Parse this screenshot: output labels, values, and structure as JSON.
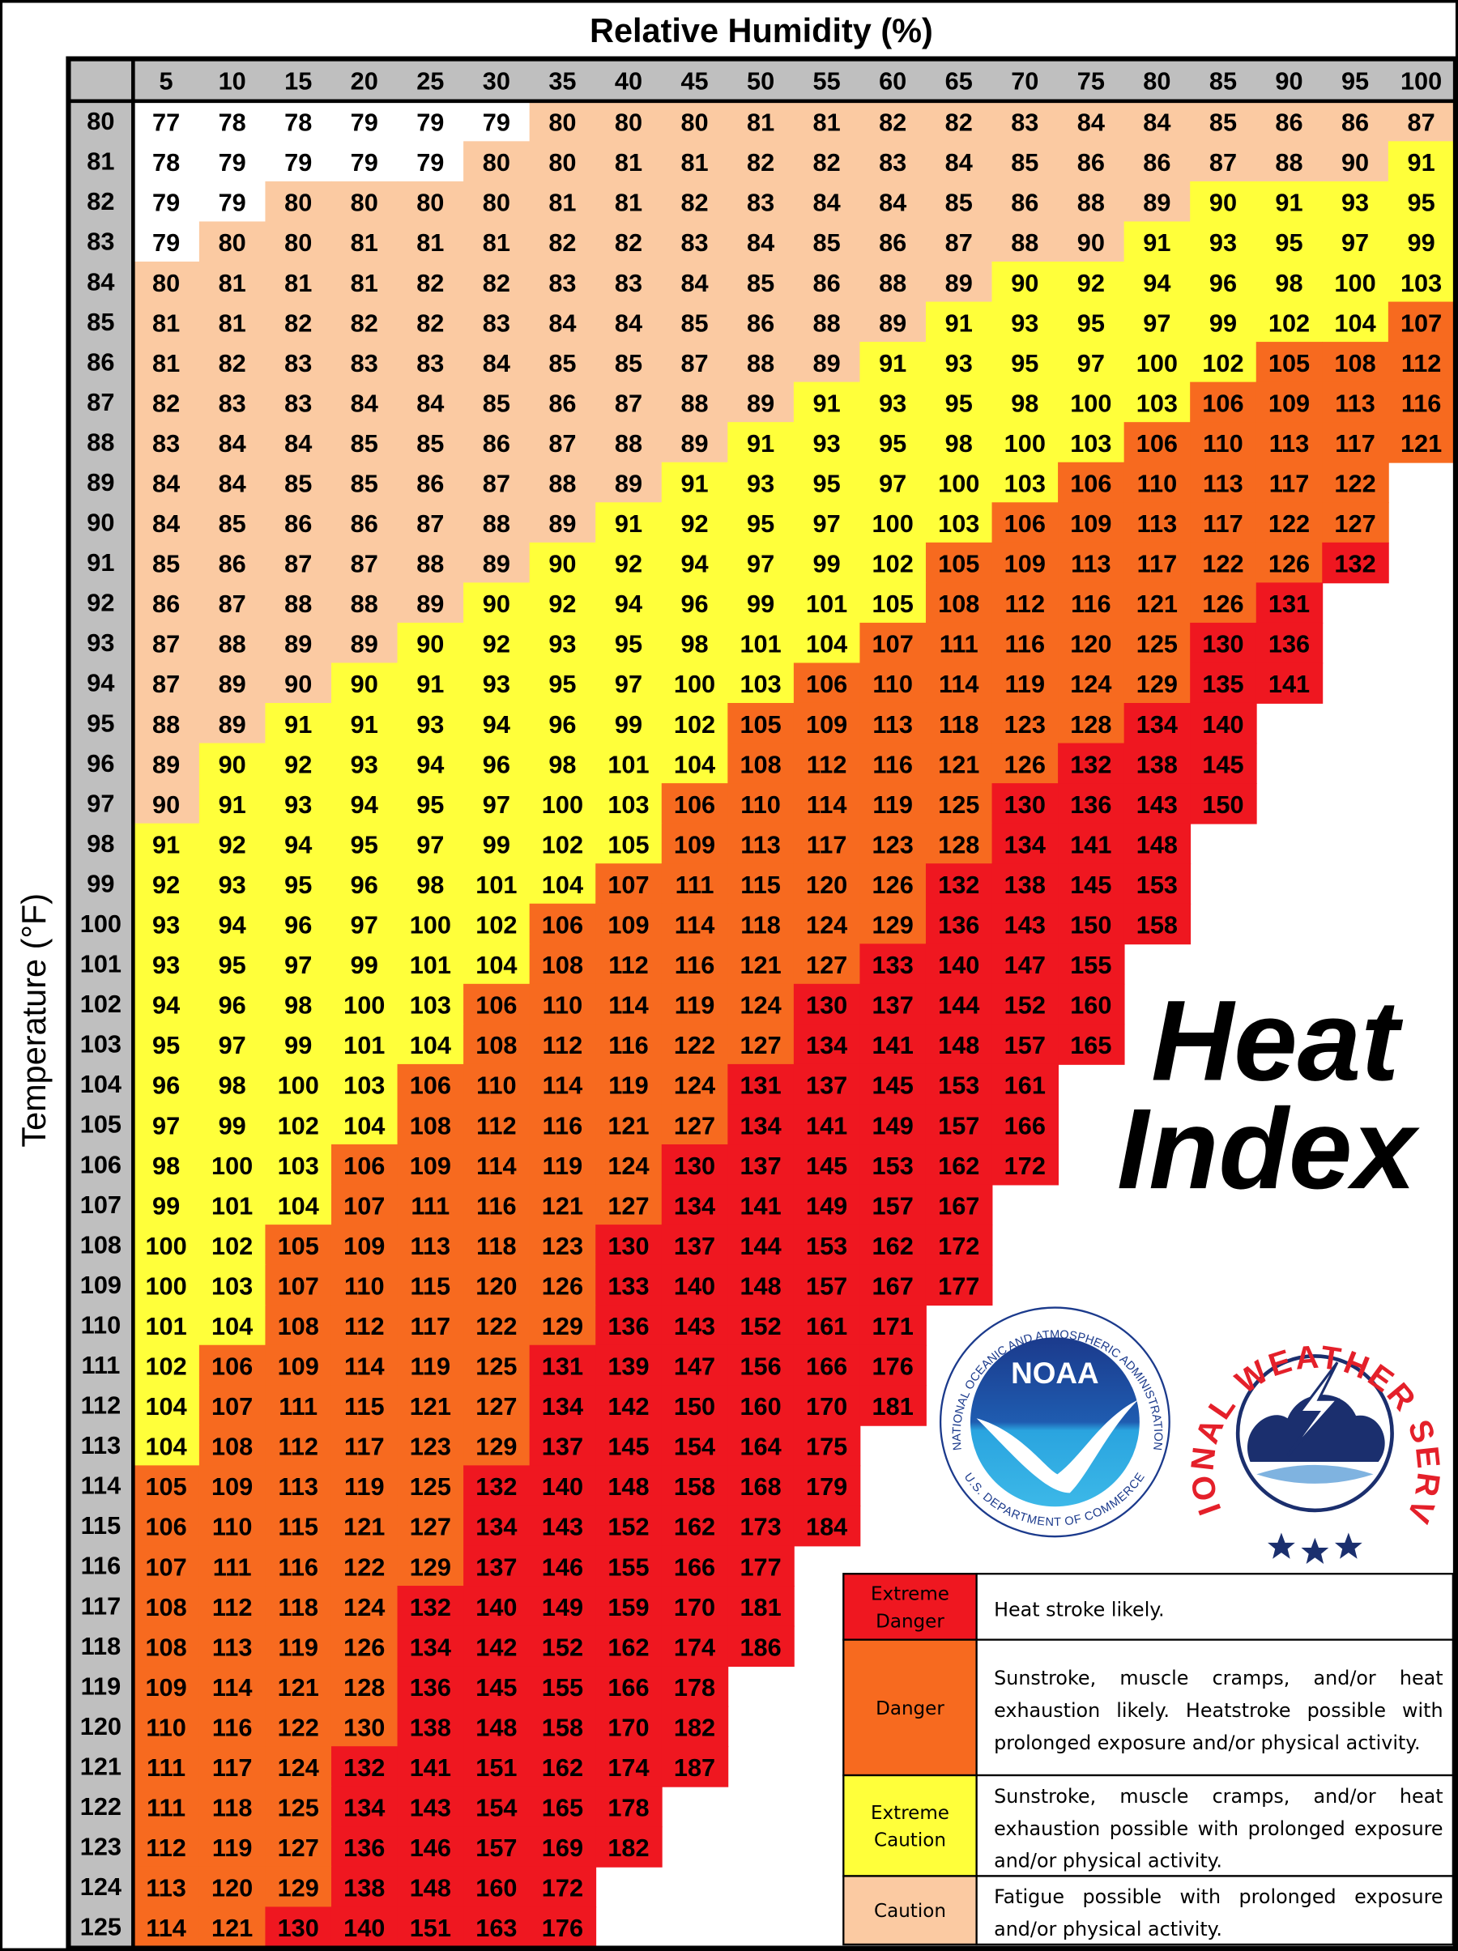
{
  "title": "Relative Humidity (%)",
  "y_title": "Temperature (°F)",
  "heading": [
    "Heat",
    "Index"
  ],
  "table": {
    "columns": [
      5,
      10,
      15,
      20,
      25,
      30,
      35,
      40,
      45,
      50,
      55,
      60,
      65,
      70,
      75,
      80,
      85,
      90,
      95,
      100
    ],
    "blank_color": "#ffffff",
    "rows": [
      {
        "temp": 80,
        "values": [
          77,
          78,
          78,
          79,
          79,
          79,
          80,
          80,
          80,
          81,
          81,
          82,
          82,
          83,
          84,
          84,
          85,
          86,
          86,
          87
        ],
        "levels": "00000011111111111111"
      },
      {
        "temp": 81,
        "values": [
          78,
          79,
          79,
          79,
          79,
          80,
          80,
          81,
          81,
          82,
          82,
          83,
          84,
          85,
          86,
          86,
          87,
          88,
          90,
          91
        ],
        "levels": "00000111111111111112"
      },
      {
        "temp": 82,
        "values": [
          79,
          79,
          80,
          80,
          80,
          80,
          81,
          81,
          82,
          83,
          84,
          84,
          85,
          86,
          88,
          89,
          90,
          91,
          93,
          95
        ],
        "levels": "00111111111111112222"
      },
      {
        "temp": 83,
        "values": [
          79,
          80,
          80,
          81,
          81,
          81,
          82,
          82,
          83,
          84,
          85,
          86,
          87,
          88,
          90,
          91,
          93,
          95,
          97,
          99
        ],
        "levels": "01111111111111122222"
      },
      {
        "temp": 84,
        "values": [
          80,
          81,
          81,
          81,
          82,
          82,
          83,
          83,
          84,
          85,
          86,
          88,
          89,
          90,
          92,
          94,
          96,
          98,
          100,
          103
        ],
        "levels": "11111111111112222222"
      },
      {
        "temp": 85,
        "values": [
          81,
          81,
          82,
          82,
          82,
          83,
          84,
          84,
          85,
          86,
          88,
          89,
          91,
          93,
          95,
          97,
          99,
          102,
          104,
          107
        ],
        "levels": "11111111111122222223"
      },
      {
        "temp": 86,
        "values": [
          81,
          82,
          83,
          83,
          83,
          84,
          85,
          85,
          87,
          88,
          89,
          91,
          93,
          95,
          97,
          100,
          102,
          105,
          108,
          112
        ],
        "levels": "11111111111222222333"
      },
      {
        "temp": 87,
        "values": [
          82,
          83,
          83,
          84,
          84,
          85,
          86,
          87,
          88,
          89,
          91,
          93,
          95,
          98,
          100,
          103,
          106,
          109,
          113,
          116
        ],
        "levels": "11111111112222223333"
      },
      {
        "temp": 88,
        "values": [
          83,
          84,
          84,
          85,
          85,
          86,
          87,
          88,
          89,
          91,
          93,
          95,
          98,
          100,
          103,
          106,
          110,
          113,
          117,
          121
        ],
        "levels": "11111111122222233333"
      },
      {
        "temp": 89,
        "values": [
          84,
          84,
          85,
          85,
          86,
          87,
          88,
          89,
          91,
          93,
          95,
          97,
          100,
          103,
          106,
          110,
          113,
          117,
          122
        ],
        "levels": "1111111122222233333"
      },
      {
        "temp": 90,
        "values": [
          84,
          85,
          86,
          86,
          87,
          88,
          89,
          91,
          92,
          95,
          97,
          100,
          103,
          106,
          109,
          113,
          117,
          122,
          127
        ],
        "levels": "1111111222222333333"
      },
      {
        "temp": 91,
        "values": [
          85,
          86,
          87,
          87,
          88,
          89,
          90,
          92,
          94,
          97,
          99,
          102,
          105,
          109,
          113,
          117,
          122,
          126,
          132
        ],
        "levels": "1111112222223333334"
      },
      {
        "temp": 92,
        "values": [
          86,
          87,
          88,
          88,
          89,
          90,
          92,
          94,
          96,
          99,
          101,
          105,
          108,
          112,
          116,
          121,
          126,
          131
        ],
        "levels": "111112222222333334"
      },
      {
        "temp": 93,
        "values": [
          87,
          88,
          89,
          89,
          90,
          92,
          93,
          95,
          98,
          101,
          104,
          107,
          111,
          116,
          120,
          125,
          130,
          136
        ],
        "levels": "111122222223333344"
      },
      {
        "temp": 94,
        "values": [
          87,
          89,
          90,
          90,
          91,
          93,
          95,
          97,
          100,
          103,
          106,
          110,
          114,
          119,
          124,
          129,
          135,
          141
        ],
        "levels": "111222222233333344"
      },
      {
        "temp": 95,
        "values": [
          88,
          89,
          91,
          91,
          93,
          94,
          96,
          99,
          102,
          105,
          109,
          113,
          118,
          123,
          128,
          134,
          140
        ],
        "levels": "11222222233333344"
      },
      {
        "temp": 96,
        "values": [
          89,
          90,
          92,
          93,
          94,
          96,
          98,
          101,
          104,
          108,
          112,
          116,
          121,
          126,
          132,
          138,
          145
        ],
        "levels": "12222222233333444"
      },
      {
        "temp": 97,
        "values": [
          90,
          91,
          93,
          94,
          95,
          97,
          100,
          103,
          106,
          110,
          114,
          119,
          125,
          130,
          136,
          143,
          150
        ],
        "levels": "12222222333334444"
      },
      {
        "temp": 98,
        "values": [
          91,
          92,
          94,
          95,
          97,
          99,
          102,
          105,
          109,
          113,
          117,
          123,
          128,
          134,
          141,
          148
        ],
        "levels": "2222222233333444"
      },
      {
        "temp": 99,
        "values": [
          92,
          93,
          95,
          96,
          98,
          101,
          104,
          107,
          111,
          115,
          120,
          126,
          132,
          138,
          145,
          153
        ],
        "levels": "2222222333334444"
      },
      {
        "temp": 100,
        "values": [
          93,
          94,
          96,
          97,
          100,
          102,
          106,
          109,
          114,
          118,
          124,
          129,
          136,
          143,
          150,
          158
        ],
        "levels": "2222223333334444"
      },
      {
        "temp": 101,
        "values": [
          93,
          95,
          97,
          99,
          101,
          104,
          108,
          112,
          116,
          121,
          127,
          133,
          140,
          147,
          155
        ],
        "levels": "222222333334444"
      },
      {
        "temp": 102,
        "values": [
          94,
          96,
          98,
          100,
          103,
          106,
          110,
          114,
          119,
          124,
          130,
          137,
          144,
          152,
          160
        ],
        "levels": "222223333344444"
      },
      {
        "temp": 103,
        "values": [
          95,
          97,
          99,
          101,
          104,
          108,
          112,
          116,
          122,
          127,
          134,
          141,
          148,
          157,
          165
        ],
        "levels": "222223333344444"
      },
      {
        "temp": 104,
        "values": [
          96,
          98,
          100,
          103,
          106,
          110,
          114,
          119,
          124,
          131,
          137,
          145,
          153,
          161
        ],
        "levels": "22223333344444"
      },
      {
        "temp": 105,
        "values": [
          97,
          99,
          102,
          104,
          108,
          112,
          116,
          121,
          127,
          134,
          141,
          149,
          157,
          166
        ],
        "levels": "22223333344444"
      },
      {
        "temp": 106,
        "values": [
          98,
          100,
          103,
          106,
          109,
          114,
          119,
          124,
          130,
          137,
          145,
          153,
          162,
          172
        ],
        "levels": "22233333444444"
      },
      {
        "temp": 107,
        "values": [
          99,
          101,
          104,
          107,
          111,
          116,
          121,
          127,
          134,
          141,
          149,
          157,
          167
        ],
        "levels": "2223333344444"
      },
      {
        "temp": 108,
        "values": [
          100,
          102,
          105,
          109,
          113,
          118,
          123,
          130,
          137,
          144,
          153,
          162,
          172
        ],
        "levels": "2233333444444"
      },
      {
        "temp": 109,
        "values": [
          100,
          103,
          107,
          110,
          115,
          120,
          126,
          133,
          140,
          148,
          157,
          167,
          177
        ],
        "levels": "2233333444444"
      },
      {
        "temp": 110,
        "values": [
          101,
          104,
          108,
          112,
          117,
          122,
          129,
          136,
          143,
          152,
          161,
          171
        ],
        "levels": "223333344444"
      },
      {
        "temp": 111,
        "values": [
          102,
          106,
          109,
          114,
          119,
          125,
          131,
          139,
          147,
          156,
          166,
          176
        ],
        "levels": "233333444444"
      },
      {
        "temp": 112,
        "values": [
          104,
          107,
          111,
          115,
          121,
          127,
          134,
          142,
          150,
          160,
          170,
          181
        ],
        "levels": "233333444444"
      },
      {
        "temp": 113,
        "values": [
          104,
          108,
          112,
          117,
          123,
          129,
          137,
          145,
          154,
          164,
          175
        ],
        "levels": "23333344444"
      },
      {
        "temp": 114,
        "values": [
          105,
          109,
          113,
          119,
          125,
          132,
          140,
          148,
          158,
          168,
          179
        ],
        "levels": "33333444444"
      },
      {
        "temp": 115,
        "values": [
          106,
          110,
          115,
          121,
          127,
          134,
          143,
          152,
          162,
          173,
          184
        ],
        "levels": "33333444444"
      },
      {
        "temp": 116,
        "values": [
          107,
          111,
          116,
          122,
          129,
          137,
          146,
          155,
          166,
          177
        ],
        "levels": "3333344444"
      },
      {
        "temp": 117,
        "values": [
          108,
          112,
          118,
          124,
          132,
          140,
          149,
          159,
          170,
          181
        ],
        "levels": "3333444444"
      },
      {
        "temp": 118,
        "values": [
          108,
          113,
          119,
          126,
          134,
          142,
          152,
          162,
          174,
          186
        ],
        "levels": "3333444444"
      },
      {
        "temp": 119,
        "values": [
          109,
          114,
          121,
          128,
          136,
          145,
          155,
          166,
          178
        ],
        "levels": "333344444"
      },
      {
        "temp": 120,
        "values": [
          110,
          116,
          122,
          130,
          138,
          148,
          158,
          170,
          182
        ],
        "levels": "333344444"
      },
      {
        "temp": 121,
        "values": [
          111,
          117,
          124,
          132,
          141,
          151,
          162,
          174,
          187
        ],
        "levels": "333444444"
      },
      {
        "temp": 122,
        "values": [
          111,
          118,
          125,
          134,
          143,
          154,
          165,
          178
        ],
        "levels": "33344444"
      },
      {
        "temp": 123,
        "values": [
          112,
          119,
          127,
          136,
          146,
          157,
          169,
          182
        ],
        "levels": "33344444"
      },
      {
        "temp": 124,
        "values": [
          113,
          120,
          129,
          138,
          148,
          160,
          172
        ],
        "levels": "3334444"
      },
      {
        "temp": 125,
        "values": [
          114,
          121,
          130,
          140,
          151,
          163,
          176
        ],
        "levels": "3344444"
      }
    ]
  },
  "legend": [
    {
      "label": "Extreme Danger",
      "color": "#ef1720",
      "text": "Heat stroke likely."
    },
    {
      "label": "Danger",
      "color": "#f76a1f",
      "text": "Sunstroke, muscle cramps, and/or heat exhaustion likely. Heatstroke possible with prolonged exposure and/or physical activity."
    },
    {
      "label": "Extreme Caution",
      "color": "#ffff3a",
      "text": "Sunstroke, muscle cramps, and/or heat exhaustion possible with prolonged exposure and/or physical activity."
    },
    {
      "label": "Caution",
      "color": "#fbcaa2",
      "text": "Fatigue possible with prolonged exposure and/or physical activity."
    }
  ],
  "logos": {
    "noaa": {
      "name": "NOAA",
      "ring_top": "NATIONAL OCEANIC AND ATMOSPHERIC ADMINISTRATION",
      "ring_bottom": "U.S. DEPARTMENT OF COMMERCE"
    },
    "nws": {
      "ring": "NATIONAL WEATHER SERVICE"
    }
  }
}
